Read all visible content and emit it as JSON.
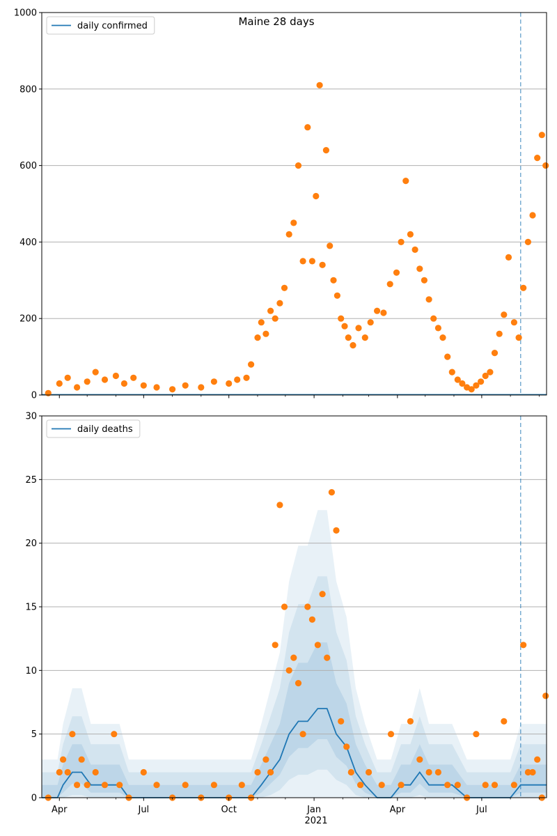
{
  "figure": {
    "title": "Maine 28 days"
  },
  "x_axis": {
    "tick_labels": [
      "Apr",
      "Jul",
      "Oct",
      "Jan",
      "Apr",
      "Jul"
    ],
    "year_label": "2021"
  },
  "colors": {
    "model_line": "#1f77b4",
    "observed_points": "#ff7f0e",
    "band": "#1f77b4",
    "divider": "#1f77b4",
    "grid": "#b0b0b0"
  },
  "chart_data": [
    {
      "type": "scatter",
      "title": "Maine 28 days",
      "legend": [
        "daily confirmed"
      ],
      "legend_placement": "top-left",
      "x_range": [
        "2020-03-13",
        "2021-09-09"
      ],
      "ylim": [
        0,
        1000
      ],
      "y_ticks": [
        0,
        200,
        400,
        600,
        800,
        1000
      ],
      "grid": "horizontal",
      "forecast_start": "2021-08-12",
      "series": [
        {
          "name": "daily confirmed",
          "kind": "line",
          "x": [
            "2020-03-13",
            "2021-09-09"
          ],
          "values": [
            1,
            1
          ]
        },
        {
          "kind": "scatter",
          "x": [
            "2020-03-20",
            "2020-04-01",
            "2020-04-10",
            "2020-04-20",
            "2020-05-01",
            "2020-05-10",
            "2020-05-20",
            "2020-06-01",
            "2020-06-10",
            "2020-06-20",
            "2020-07-01",
            "2020-07-15",
            "2020-08-01",
            "2020-08-15",
            "2020-09-01",
            "2020-09-15",
            "2020-10-01",
            "2020-10-10",
            "2020-10-20",
            "2020-10-25",
            "2020-11-01",
            "2020-11-05",
            "2020-11-10",
            "2020-11-15",
            "2020-11-20",
            "2020-11-25",
            "2020-11-30",
            "2020-12-05",
            "2020-12-10",
            "2020-12-15",
            "2020-12-20",
            "2020-12-25",
            "2020-12-30",
            "2021-01-03",
            "2021-01-07",
            "2021-01-10",
            "2021-01-14",
            "2021-01-18",
            "2021-01-22",
            "2021-01-26",
            "2021-01-30",
            "2021-02-03",
            "2021-02-07",
            "2021-02-12",
            "2021-02-18",
            "2021-02-25",
            "2021-03-03",
            "2021-03-10",
            "2021-03-17",
            "2021-03-24",
            "2021-03-31",
            "2021-04-05",
            "2021-04-10",
            "2021-04-15",
            "2021-04-20",
            "2021-04-25",
            "2021-04-30",
            "2021-05-05",
            "2021-05-10",
            "2021-05-15",
            "2021-05-20",
            "2021-05-25",
            "2021-05-30",
            "2021-06-05",
            "2021-06-10",
            "2021-06-15",
            "2021-06-20",
            "2021-06-25",
            "2021-06-30",
            "2021-07-05",
            "2021-07-10",
            "2021-07-15",
            "2021-07-20",
            "2021-07-25",
            "2021-07-30",
            "2021-08-05",
            "2021-08-10",
            "2021-08-15",
            "2021-08-20",
            "2021-08-25",
            "2021-08-30",
            "2021-09-04",
            "2021-09-08"
          ],
          "values": [
            5,
            30,
            45,
            20,
            35,
            60,
            40,
            50,
            30,
            45,
            25,
            20,
            15,
            25,
            20,
            35,
            30,
            40,
            45,
            80,
            150,
            190,
            160,
            220,
            200,
            240,
            280,
            420,
            450,
            600,
            350,
            700,
            350,
            520,
            810,
            340,
            640,
            390,
            300,
            260,
            200,
            180,
            150,
            130,
            175,
            150,
            190,
            220,
            215,
            290,
            320,
            400,
            560,
            420,
            380,
            330,
            300,
            250,
            200,
            175,
            150,
            100,
            60,
            40,
            30,
            20,
            15,
            25,
            35,
            50,
            60,
            110,
            160,
            210,
            360,
            190,
            150,
            280,
            400,
            470,
            620,
            680,
            600
          ]
        }
      ]
    },
    {
      "type": "scatter",
      "legend": [
        "daily deaths"
      ],
      "legend_placement": "top-left",
      "x_range": [
        "2020-03-13",
        "2021-09-09"
      ],
      "ylim": [
        0,
        30
      ],
      "y_ticks": [
        0,
        5,
        10,
        15,
        20,
        25,
        30
      ],
      "grid": "horizontal",
      "forecast_start": "2021-08-12",
      "series": [
        {
          "name": "daily deaths",
          "kind": "line",
          "x": [
            "2020-03-13",
            "2020-03-30",
            "2020-04-05",
            "2020-04-15",
            "2020-04-25",
            "2020-05-05",
            "2020-05-15",
            "2020-05-25",
            "2020-06-05",
            "2020-06-15",
            "2020-07-01",
            "2020-08-01",
            "2020-09-01",
            "2020-10-01",
            "2020-10-25",
            "2020-11-05",
            "2020-11-15",
            "2020-11-25",
            "2020-12-05",
            "2020-12-15",
            "2020-12-25",
            "2021-01-05",
            "2021-01-15",
            "2021-01-25",
            "2021-02-05",
            "2021-02-15",
            "2021-02-25",
            "2021-03-10",
            "2021-03-25",
            "2021-04-05",
            "2021-04-15",
            "2021-04-25",
            "2021-05-05",
            "2021-05-15",
            "2021-05-30",
            "2021-06-15",
            "2021-07-01",
            "2021-07-15",
            "2021-08-01",
            "2021-08-12",
            "2021-09-09"
          ],
          "values": [
            0,
            0,
            1,
            2,
            2,
            1,
            1,
            1,
            1,
            0,
            0,
            0,
            0,
            0,
            0,
            1,
            2,
            3,
            5,
            6,
            6,
            7,
            7,
            5,
            4,
            2,
            1,
            0,
            0,
            1,
            1,
            2,
            1,
            1,
            1,
            0,
            0,
            0,
            0,
            1,
            1
          ]
        },
        {
          "kind": "scatter",
          "x": [
            "2020-03-20",
            "2020-04-01",
            "2020-04-05",
            "2020-04-10",
            "2020-04-15",
            "2020-04-20",
            "2020-04-25",
            "2020-05-01",
            "2020-05-10",
            "2020-05-20",
            "2020-05-30",
            "2020-06-05",
            "2020-06-15",
            "2020-07-01",
            "2020-07-15",
            "2020-08-01",
            "2020-08-15",
            "2020-09-01",
            "2020-09-15",
            "2020-10-01",
            "2020-10-15",
            "2020-10-25",
            "2020-11-01",
            "2020-11-10",
            "2020-11-15",
            "2020-11-20",
            "2020-11-25",
            "2020-11-30",
            "2020-12-05",
            "2020-12-10",
            "2020-12-15",
            "2020-12-20",
            "2020-12-25",
            "2020-12-30",
            "2021-01-05",
            "2021-01-10",
            "2021-01-15",
            "2021-01-20",
            "2021-01-25",
            "2021-01-30",
            "2021-02-05",
            "2021-02-10",
            "2021-02-20",
            "2021-03-01",
            "2021-03-15",
            "2021-03-25",
            "2021-04-05",
            "2021-04-15",
            "2021-04-25",
            "2021-05-05",
            "2021-05-15",
            "2021-05-25",
            "2021-06-05",
            "2021-06-15",
            "2021-06-25",
            "2021-07-05",
            "2021-07-15",
            "2021-07-25",
            "2021-08-05",
            "2021-08-15",
            "2021-08-20",
            "2021-08-25",
            "2021-08-30",
            "2021-09-04",
            "2021-09-08"
          ],
          "values": [
            0,
            2,
            3,
            2,
            5,
            1,
            3,
            1,
            2,
            1,
            5,
            1,
            0,
            2,
            1,
            0,
            1,
            0,
            1,
            0,
            1,
            0,
            2,
            3,
            2,
            12,
            23,
            15,
            10,
            11,
            9,
            5,
            15,
            14,
            12,
            16,
            11,
            24,
            21,
            6,
            4,
            2,
            1,
            2,
            1,
            5,
            1,
            6,
            3,
            2,
            2,
            1,
            1,
            0,
            5,
            1,
            1,
            6,
            1,
            12,
            2,
            2,
            3,
            0,
            8
          ]
        }
      ]
    }
  ]
}
